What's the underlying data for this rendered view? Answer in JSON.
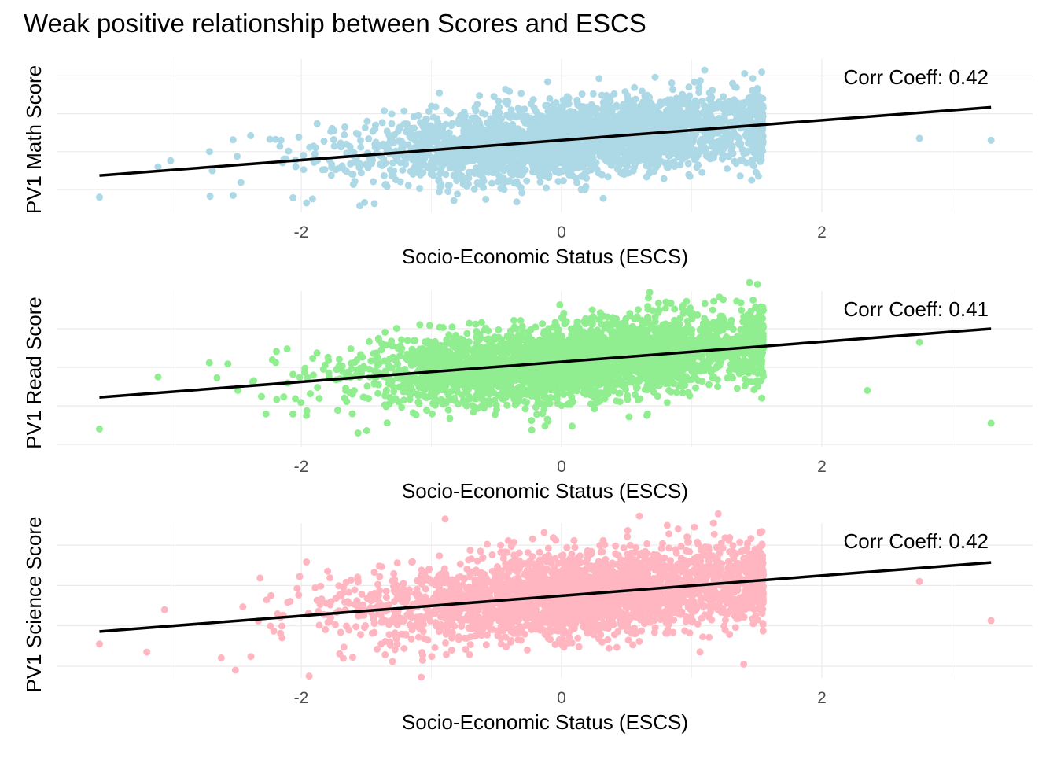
{
  "chart_data": {
    "type": "scatter",
    "title": "Weak positive relationship between Scores and ESCS",
    "panels": [
      {
        "ylabel": "PV1 Math Score",
        "xlabel": "Socio-Economic Status (ESCS)",
        "annotation": "Corr Coeff: 0.42",
        "correlation": 0.42,
        "point_color": "#ADD8E6",
        "x_ticks": [
          "-2",
          "0",
          "2"
        ],
        "x_tick_values": [
          -2,
          0,
          2
        ],
        "xlim": [
          -3.75,
          3.8
        ],
        "y_grid_values": [
          300,
          400,
          500,
          600
        ],
        "ylim": [
          240,
          650
        ],
        "trend_line": {
          "x": [
            -3.55,
            3.3
          ],
          "y": [
            337,
            517
          ]
        },
        "sample": {
          "n": 3000,
          "x_mean": 0.15,
          "x_sd": 0.85,
          "y_resid_sd": 48
        },
        "outliers": [
          [
            -3.55,
            280
          ],
          [
            -2.7,
            282
          ],
          [
            1.1,
            615
          ],
          [
            3.3,
            430
          ],
          [
            2.75,
            435
          ],
          [
            -3.1,
            360
          ]
        ]
      },
      {
        "ylabel": "PV1 Read Score",
        "xlabel": "Socio-Economic Status (ESCS)",
        "annotation": "Corr Coeff: 0.41",
        "correlation": 0.41,
        "point_color": "#90EE90",
        "x_ticks": [
          "-2",
          "0",
          "2"
        ],
        "x_tick_values": [
          -2,
          0,
          2
        ],
        "xlim": [
          -3.75,
          3.8
        ],
        "y_grid_values": [
          300,
          400,
          500,
          600
        ],
        "ylim": [
          290,
          700
        ],
        "trend_line": {
          "x": [
            -3.55,
            3.3
          ],
          "y": [
            422,
            600
          ]
        },
        "sample": {
          "n": 3000,
          "x_mean": 0.15,
          "x_sd": 0.85,
          "y_resid_sd": 50
        },
        "outliers": [
          [
            -3.55,
            340
          ],
          [
            3.3,
            355
          ],
          [
            -3.1,
            475
          ],
          [
            2.35,
            440
          ],
          [
            2.75,
            565
          ]
        ]
      },
      {
        "ylabel": "PV1 Science Score",
        "xlabel": "Socio-Economic Status (ESCS)",
        "annotation": "Corr Coeff: 0.42",
        "correlation": 0.42,
        "point_color": "#FFB6C1",
        "x_ticks": [
          "-2",
          "0",
          "2"
        ],
        "x_tick_values": [
          -2,
          0,
          2
        ],
        "xlim": [
          -3.75,
          3.8
        ],
        "y_grid_values": [
          300,
          400,
          500,
          600
        ],
        "ylim": [
          275,
          680
        ],
        "trend_line": {
          "x": [
            -3.55,
            3.3
          ],
          "y": [
            386,
            557
          ]
        },
        "sample": {
          "n": 3000,
          "x_mean": 0.15,
          "x_sd": 0.85,
          "y_resid_sd": 50
        },
        "outliers": [
          [
            -3.55,
            355
          ],
          [
            3.3,
            413
          ],
          [
            -3.05,
            440
          ],
          [
            1.4,
            305
          ],
          [
            2.75,
            510
          ]
        ]
      }
    ]
  }
}
